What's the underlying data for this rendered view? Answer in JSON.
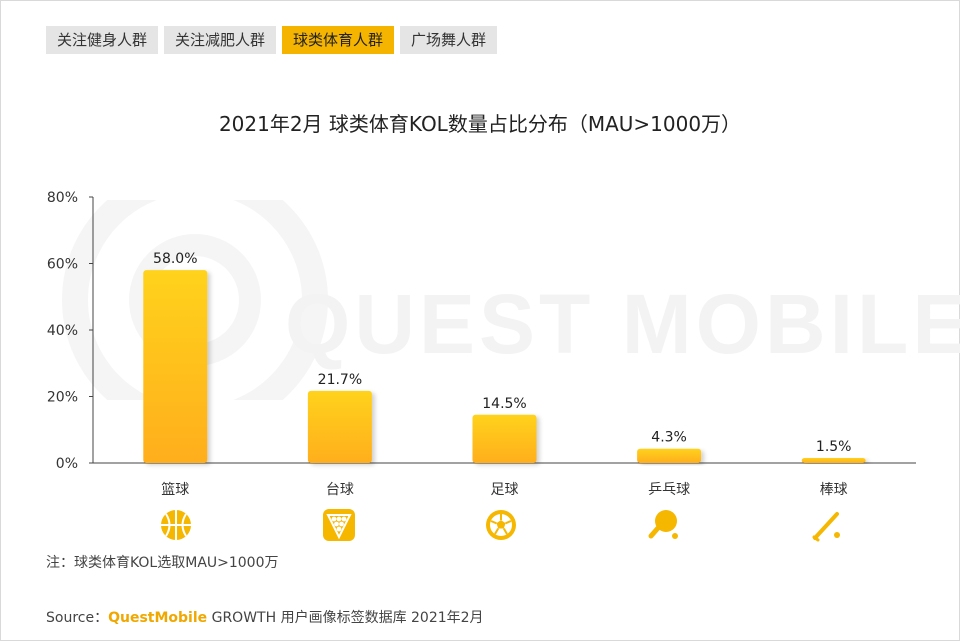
{
  "tabs": [
    {
      "label": "关注健身人群",
      "active": false
    },
    {
      "label": "关注减肥人群",
      "active": false
    },
    {
      "label": "球类体育人群",
      "active": true
    },
    {
      "label": "广场舞人群",
      "active": false
    }
  ],
  "watermark": "QUEST MOBILE",
  "chart_data": {
    "type": "bar",
    "title": "2021年2月 球类体育KOL数量占比分布（MAU>1000万）",
    "categories": [
      "篮球",
      "台球",
      "足球",
      "乒乓球",
      "棒球"
    ],
    "values": [
      58.0,
      21.7,
      14.5,
      4.3,
      1.5
    ],
    "value_labels": [
      "58.0%",
      "21.7%",
      "14.5%",
      "4.3%",
      "1.5%"
    ],
    "ylim": [
      0,
      80
    ],
    "yticks": [
      0,
      20,
      40,
      60,
      80
    ],
    "ytick_labels": [
      "0%",
      "20%",
      "40%",
      "60%",
      "80%"
    ],
    "xlabel": "",
    "ylabel": "",
    "grid": false,
    "icons": [
      "basketball-icon",
      "billiards-icon",
      "soccer-ball-icon",
      "ping-pong-icon",
      "baseball-bat-icon"
    ]
  },
  "colors": {
    "bar_top": "#ffd21a",
    "bar_bottom": "#ffae1f",
    "accent": "#f4b400",
    "icon": "#f6b700"
  },
  "note": "注：球类体育KOL选取MAU>1000万",
  "source": {
    "prefix": "Source：",
    "brand": "QuestMobile",
    "rest": " GROWTH 用户画像标签数据库 2021年2月"
  }
}
